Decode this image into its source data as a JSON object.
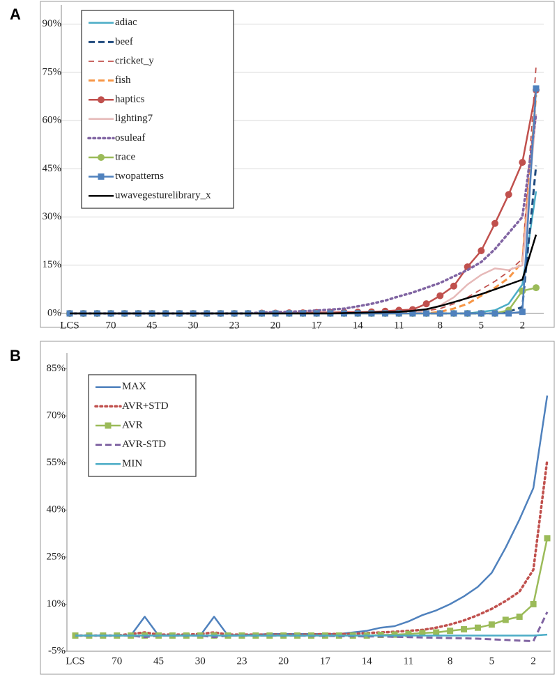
{
  "chart_data": [
    {
      "type": "line",
      "panel_label": "A",
      "grid": true,
      "legend": "upper left",
      "categories": [
        "LCS",
        null,
        null,
        "70",
        null,
        null,
        "45",
        null,
        null,
        "30",
        null,
        null,
        "23",
        null,
        null,
        "20",
        null,
        null,
        "17",
        null,
        null,
        "14",
        null,
        null,
        "11",
        null,
        null,
        "8",
        null,
        null,
        "5",
        null,
        null,
        "2",
        null
      ],
      "ylim": [
        0,
        96
      ],
      "yticks": [
        {
          "value": 0,
          "label": "0%"
        },
        {
          "value": 15,
          "label": "15%"
        },
        {
          "value": 30,
          "label": "30%"
        },
        {
          "value": 45,
          "label": "45%"
        },
        {
          "value": 60,
          "label": "60%"
        },
        {
          "value": 75,
          "label": "75%"
        },
        {
          "value": 90,
          "label": "90%"
        }
      ],
      "series": [
        {
          "name": "adiac",
          "color": "#4bacc6",
          "dash": "solid",
          "marker": "none",
          "values": [
            0,
            0,
            0,
            0,
            0,
            0,
            0,
            0,
            0,
            0,
            0,
            0,
            0,
            0,
            0,
            0,
            0,
            0,
            0,
            0,
            0,
            0,
            0,
            0,
            0,
            0,
            0,
            0,
            0,
            0,
            0.5,
            1,
            3,
            9,
            38
          ]
        },
        {
          "name": "beef",
          "color": "#1f497d",
          "dash": "dashed",
          "marker": "none",
          "values": [
            0,
            0,
            0,
            0,
            0,
            0,
            0,
            0,
            0,
            0,
            0,
            0,
            0,
            0,
            0,
            0,
            0,
            0,
            0,
            0,
            0,
            0,
            0,
            0,
            0,
            0,
            0,
            0,
            0,
            0,
            0,
            0,
            0.5,
            2,
            46
          ]
        },
        {
          "name": "cricket_y",
          "color": "#c0504d",
          "dash": "dashed-thin",
          "marker": "none",
          "values": [
            0,
            0,
            0,
            0,
            0,
            0,
            0,
            0,
            0,
            0,
            0,
            0,
            0,
            0,
            0.1,
            0.1,
            0.2,
            0.2,
            0.2,
            0.3,
            0.3,
            0.3,
            0.4,
            0.4,
            0.5,
            0.5,
            0.8,
            1.5,
            3,
            5,
            7.5,
            10,
            13,
            17,
            77
          ]
        },
        {
          "name": "fish",
          "color": "#f79646",
          "dash": "dashed",
          "marker": "none",
          "values": [
            0,
            0,
            0,
            0,
            0,
            0,
            0,
            0,
            0,
            0,
            0,
            0,
            0,
            0,
            0,
            0,
            0,
            0,
            0,
            0,
            0,
            0,
            0,
            0,
            0,
            0,
            0,
            0.5,
            1.5,
            3,
            5.5,
            8,
            11,
            16,
            68
          ]
        },
        {
          "name": "haptics",
          "color": "#c0504d",
          "dash": "solid",
          "marker": "circle",
          "values": [
            0,
            0,
            0,
            0,
            0,
            0,
            0,
            0,
            0,
            0,
            0,
            0,
            0,
            0,
            0.1,
            0.1,
            0.2,
            0.2,
            0.3,
            0.3,
            0.4,
            0.4,
            0.5,
            0.7,
            1,
            1.2,
            3,
            5.5,
            8.5,
            14.5,
            19.5,
            28,
            37,
            47,
            69.5
          ]
        },
        {
          "name": "lighting7",
          "color": "#e6b9b8",
          "dash": "solid",
          "marker": "none",
          "values": [
            0,
            0,
            0,
            0,
            0,
            0,
            0,
            0,
            0,
            0,
            0,
            0,
            0,
            0,
            0,
            0,
            0,
            0,
            0,
            0,
            0,
            0,
            0,
            0,
            0,
            0,
            1,
            2.5,
            5,
            9,
            12,
            14,
            13.5,
            15,
            62
          ]
        },
        {
          "name": "osuleaf",
          "color": "#8064a2",
          "dash": "dotted",
          "marker": "none",
          "values": [
            0,
            0,
            0,
            0,
            0,
            0,
            0,
            0,
            0,
            0,
            0,
            0,
            0,
            0,
            0.3,
            0.4,
            0.5,
            0.7,
            0.9,
            1.2,
            1.5,
            2.2,
            3,
            4,
            5.3,
            6.5,
            8,
            9.5,
            11.5,
            13.5,
            16,
            20,
            25,
            30,
            62
          ]
        },
        {
          "name": "trace",
          "color": "#9bbb59",
          "dash": "solid",
          "marker": "circle",
          "values": [
            0,
            0,
            0,
            0,
            0,
            0,
            0,
            0,
            0,
            0,
            0,
            0,
            0,
            0,
            0,
            0,
            0,
            0,
            0,
            0,
            0,
            0,
            0,
            0,
            0,
            0,
            0,
            0,
            0,
            0,
            0,
            0,
            1,
            7,
            8
          ]
        },
        {
          "name": "twopatterns",
          "color": "#4f81bd",
          "dash": "solid",
          "marker": "square",
          "values": [
            0,
            0,
            0,
            0,
            0,
            0,
            0,
            0,
            0,
            0,
            0,
            0,
            0,
            0,
            0,
            0,
            0,
            0,
            0,
            0,
            0,
            0,
            0,
            0,
            0,
            0,
            0,
            0,
            0,
            0,
            0,
            0,
            0,
            0.5,
            70
          ]
        },
        {
          "name": "uwavegesturelibrary_x",
          "color": "#000000",
          "dash": "solid",
          "marker": "none",
          "values": [
            0,
            0,
            0,
            0,
            0,
            0,
            0,
            0,
            0,
            0,
            0,
            0,
            0,
            0,
            0,
            0,
            0,
            0,
            0,
            0,
            0.1,
            0.2,
            0.3,
            0.4,
            0.5,
            0.8,
            1.3,
            2.3,
            3.5,
            4.8,
            6,
            7.5,
            9,
            10.5,
            24.5
          ]
        }
      ]
    },
    {
      "type": "line",
      "panel_label": "B",
      "grid": false,
      "legend": "upper left",
      "categories": [
        "LCS",
        null,
        null,
        "70",
        null,
        null,
        "45",
        null,
        null,
        "30",
        null,
        null,
        "23",
        null,
        null,
        "20",
        null,
        null,
        "17",
        null,
        null,
        "14",
        null,
        null,
        "11",
        null,
        null,
        "8",
        null,
        null,
        "5",
        null,
        null,
        "2",
        null
      ],
      "ylim": [
        -5,
        90
      ],
      "yticks": [
        {
          "value": -5,
          "label": "-5%"
        },
        {
          "value": 10,
          "label": "10%"
        },
        {
          "value": 25,
          "label": "25%"
        },
        {
          "value": 40,
          "label": "40%"
        },
        {
          "value": 55,
          "label": "55%"
        },
        {
          "value": 70,
          "label": "70%"
        },
        {
          "value": 85,
          "label": "85%"
        }
      ],
      "series": [
        {
          "name": "MAX",
          "color": "#4f81bd",
          "dash": "solid",
          "marker": "none",
          "values": [
            0,
            0,
            0,
            0,
            0,
            6,
            0,
            0,
            0,
            0,
            6,
            0,
            0.3,
            0.3,
            0.5,
            0.5,
            0.5,
            0.5,
            0.5,
            0.5,
            1,
            1.5,
            2.5,
            3,
            4.5,
            6.5,
            8,
            10,
            12.5,
            15.5,
            20,
            28,
            37,
            47,
            76.5
          ]
        },
        {
          "name": "AVR+STD",
          "color": "#c0504d",
          "dash": "dotted",
          "marker": "none",
          "values": [
            0,
            0,
            0,
            0,
            0.5,
            1,
            0.3,
            0.3,
            0.3,
            0.5,
            1,
            0.3,
            0.3,
            0.3,
            0.3,
            0.3,
            0.3,
            0.3,
            0.5,
            0.5,
            0.5,
            0.8,
            1,
            1.2,
            1.5,
            1.8,
            2.5,
            3.5,
            4.8,
            6.5,
            8.5,
            11,
            14,
            21,
            56
          ]
        },
        {
          "name": "AVR",
          "color": "#9bbb59",
          "dash": "solid",
          "marker": "square",
          "values": [
            0,
            0,
            0,
            0,
            0,
            0,
            0,
            0,
            0,
            0,
            0,
            0,
            0,
            0,
            0,
            0,
            0,
            0,
            0,
            0,
            0,
            0,
            0.2,
            0.3,
            0.5,
            0.8,
            1,
            1.5,
            2,
            2.5,
            3.5,
            5,
            6,
            10,
            31
          ]
        },
        {
          "name": "AVR-STD",
          "color": "#8064a2",
          "dash": "dashed",
          "marker": "none",
          "values": [
            0,
            0,
            0,
            0,
            0,
            -0.5,
            0,
            0,
            0,
            0,
            -0.5,
            0,
            0,
            0,
            0,
            0,
            0,
            -0.1,
            -0.1,
            -0.2,
            -0.2,
            -0.3,
            -0.3,
            -0.4,
            -0.5,
            -0.6,
            -0.7,
            -0.8,
            -0.9,
            -1,
            -1.2,
            -1.4,
            -1.6,
            -1.8,
            7.5
          ]
        },
        {
          "name": "MIN",
          "color": "#4bacc6",
          "dash": "solid",
          "marker": "none",
          "values": [
            0,
            0,
            0,
            0,
            0,
            0,
            0,
            0,
            0,
            0,
            0,
            0,
            0,
            0,
            0,
            0,
            0,
            0,
            0,
            0,
            0,
            0,
            0,
            0,
            0,
            0,
            0,
            0,
            0,
            0,
            0,
            0,
            0,
            0,
            0.3
          ]
        }
      ]
    }
  ]
}
